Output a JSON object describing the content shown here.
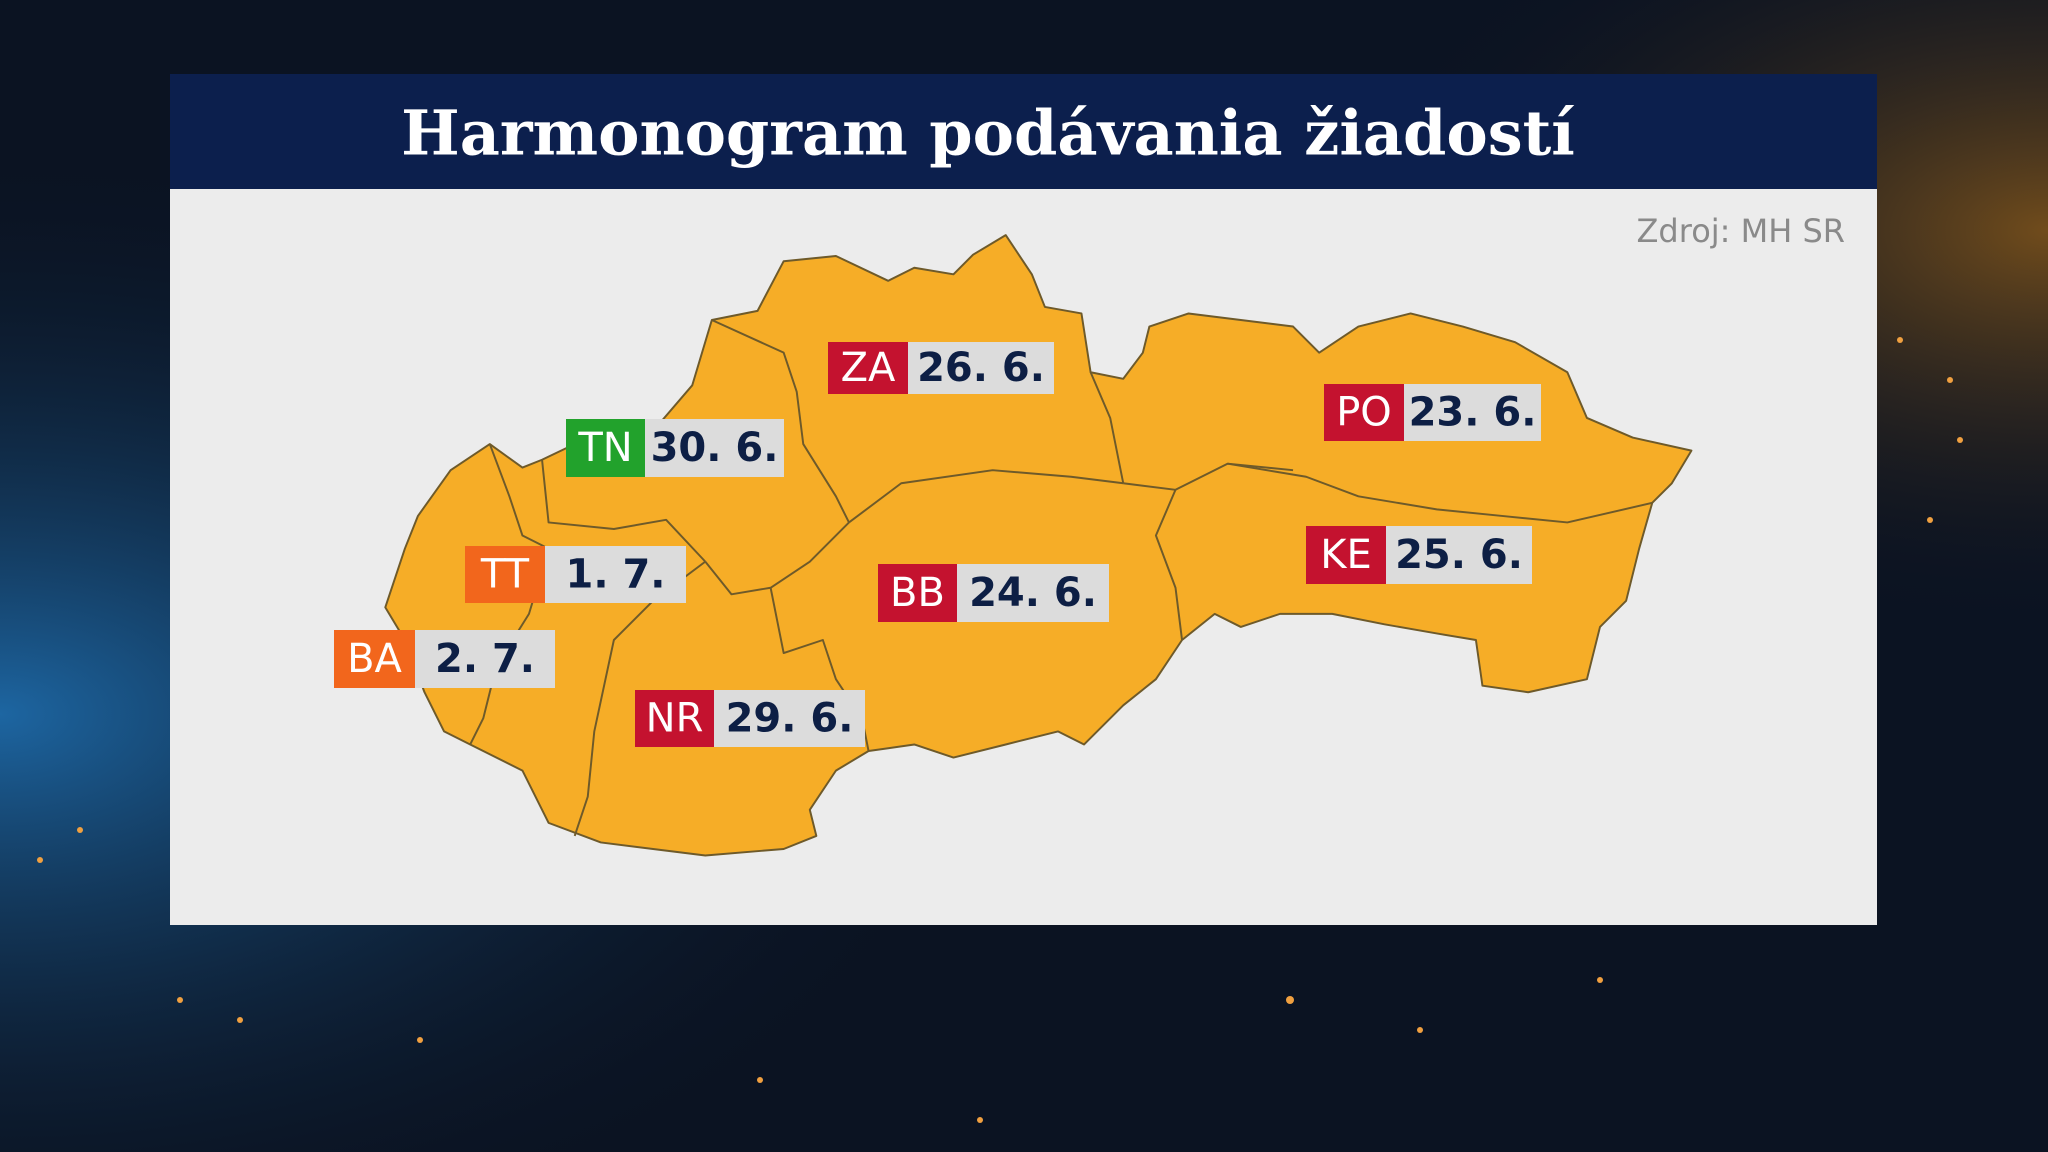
{
  "header": {
    "title": "Harmonogram podávania žiadostí"
  },
  "source": "Zdroj: MH SR",
  "regions": [
    {
      "code": "ZA",
      "date": "26. 6.",
      "color": "#c4122f"
    },
    {
      "code": "TN",
      "date": "30. 6.",
      "color": "#22a22c"
    },
    {
      "code": "PO",
      "date": "23. 6.",
      "color": "#c4122f"
    },
    {
      "code": "TT",
      "date": "1. 7.",
      "color": "#f2661c"
    },
    {
      "code": "BB",
      "date": "24. 6.",
      "color": "#c4122f"
    },
    {
      "code": "KE",
      "date": "25. 6.",
      "color": "#c4122f"
    },
    {
      "code": "BA",
      "date": "2. 7.",
      "color": "#f2661c"
    },
    {
      "code": "NR",
      "date": "29. 6.",
      "color": "#c4122f"
    }
  ]
}
